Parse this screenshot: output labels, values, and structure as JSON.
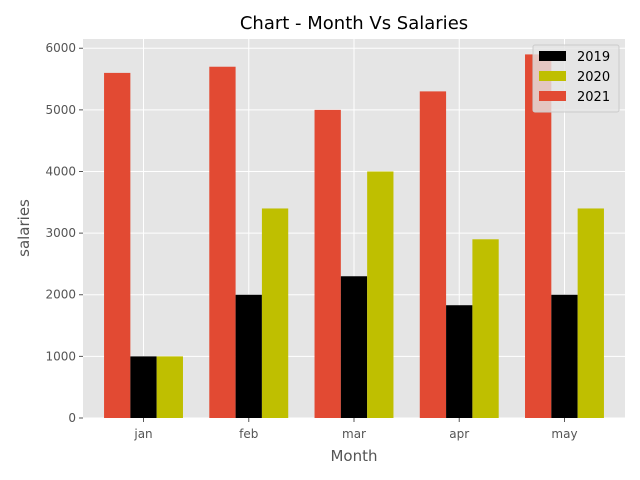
{
  "chart_data": {
    "type": "bar",
    "title": "Chart - Month Vs Salaries",
    "xlabel": "Month",
    "ylabel": "salaries",
    "categories": [
      "jan",
      "feb",
      "mar",
      "apr",
      "may"
    ],
    "series": [
      {
        "name": "2021",
        "color": "#e24a33",
        "values": [
          5600,
          5700,
          5000,
          5300,
          5900
        ]
      },
      {
        "name": "2019",
        "color": "#000000",
        "values": [
          1000,
          2000,
          2300,
          1830,
          2000
        ]
      },
      {
        "name": "2020",
        "color": "#bfbf00",
        "values": [
          1000,
          3400,
          4000,
          2900,
          3400
        ]
      }
    ],
    "legend_order": [
      "2019",
      "2020",
      "2021"
    ],
    "legend_position": "top-right",
    "ylim": [
      0,
      6150
    ],
    "yticks": [
      0,
      1000,
      2000,
      3000,
      4000,
      5000,
      6000
    ],
    "grid": true,
    "plot_background": "#e5e5e5",
    "grid_color": "#ffffff"
  }
}
